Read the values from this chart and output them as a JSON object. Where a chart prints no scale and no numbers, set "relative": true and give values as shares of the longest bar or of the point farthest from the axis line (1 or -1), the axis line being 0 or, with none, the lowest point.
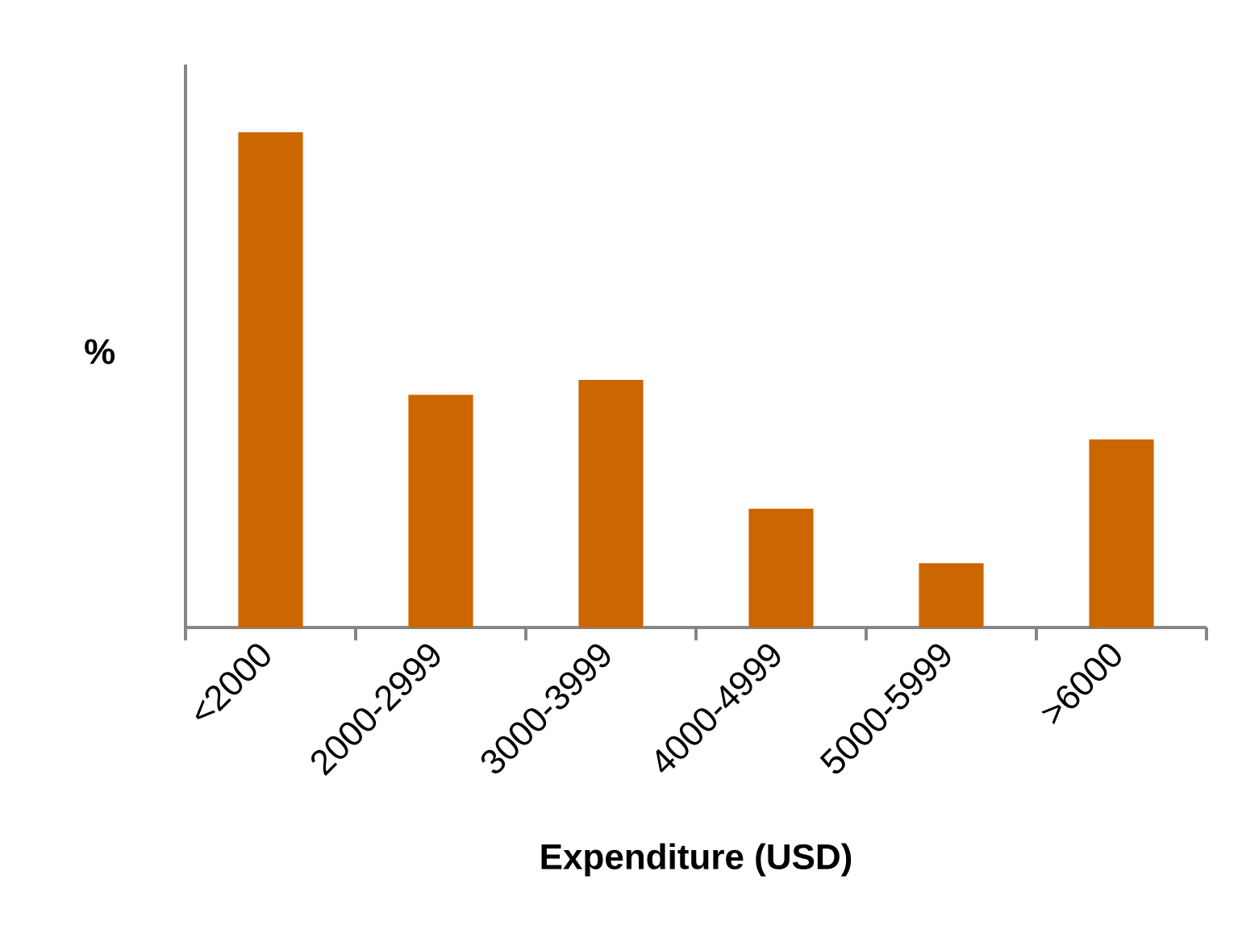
{
  "chart_data": {
    "type": "bar",
    "relative": true,
    "categories": [
      "<2000",
      "2000-2999",
      "3000-3999",
      "4000-4999",
      "5000-5999",
      ">6000"
    ],
    "values": [
      1,
      0.47,
      0.5,
      0.24,
      0.13,
      0.38
    ],
    "color": "#cc6600",
    "xlabel": "Expenditure (USD)",
    "ylabel": "%"
  }
}
